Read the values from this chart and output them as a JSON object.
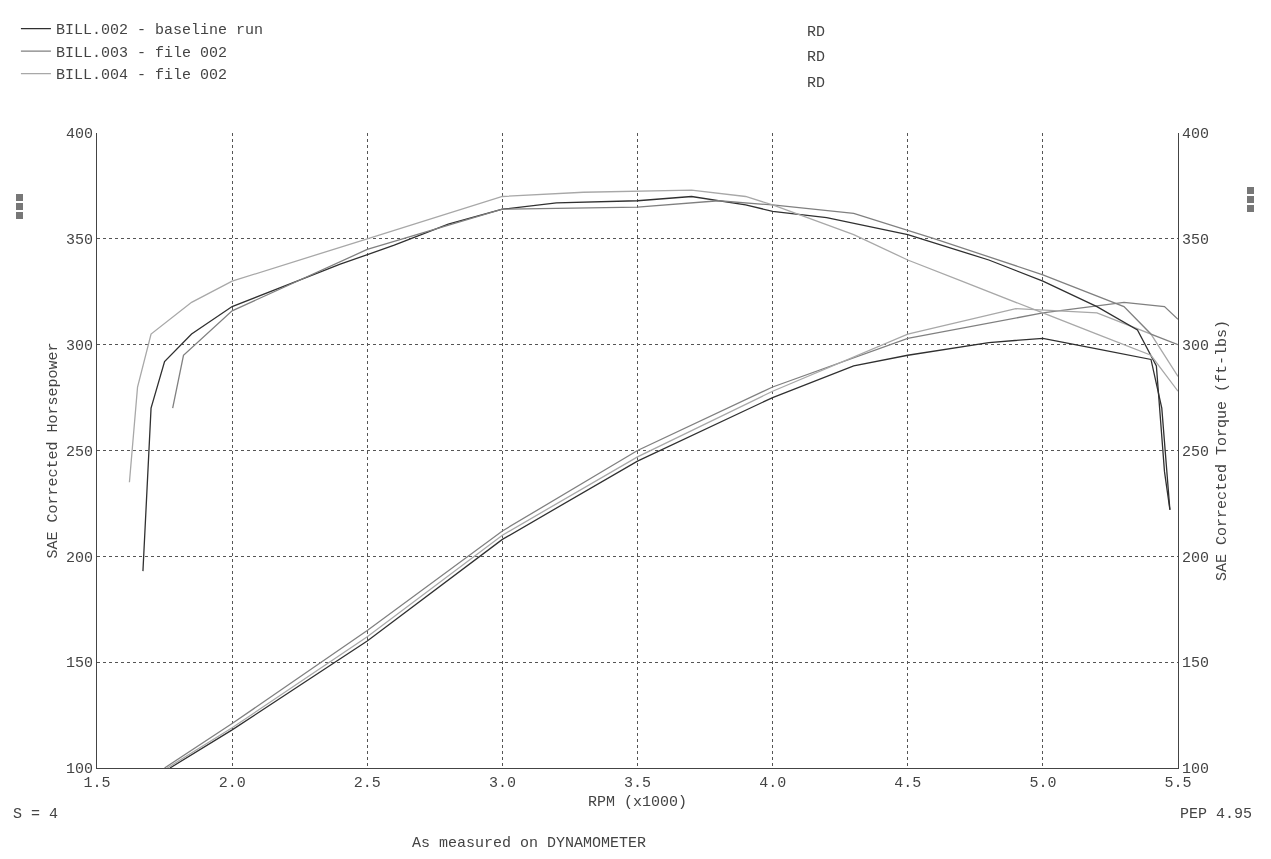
{
  "chart_data": {
    "type": "line",
    "xlabel": "RPM (x1000)",
    "ylabel": "SAE Corrected Horsepower",
    "y2label": "SAE Corrected Torque (ft-lbs)",
    "xlim": [
      1.5,
      5.5
    ],
    "xticks": [
      {
        "value": 1.5,
        "label": "1.5"
      },
      {
        "value": 2,
        "label": "2.0"
      },
      {
        "value": 2.5,
        "label": "2.5"
      },
      {
        "value": 3,
        "label": "3.0"
      },
      {
        "value": 3.5,
        "label": "3.5"
      },
      {
        "value": 4,
        "label": "4.0"
      },
      {
        "value": 4.5,
        "label": "4.5"
      },
      {
        "value": 5,
        "label": "5.0"
      },
      {
        "value": 5.5,
        "label": "5.5"
      }
    ],
    "ylim": [
      100,
      400
    ],
    "yticks": [
      100,
      150,
      200,
      250,
      300,
      350,
      400
    ],
    "y2lim": [
      100,
      400
    ],
    "y2ticks": [
      100,
      150,
      200,
      250,
      300,
      350,
      400
    ],
    "grid": true,
    "legend": "top left",
    "marker": "none",
    "line_style": "solid",
    "annotations": [
      "RD",
      "RD",
      "RD",
      "S = 4",
      "PEP 4.95",
      "As measured on DYNAMOMETER"
    ],
    "series": [
      {
        "name": "BILL.002 - baseline run",
        "color": "#303030",
        "axis": "y2",
        "x": [
          1.67,
          1.7,
          1.75,
          1.85,
          2.0,
          2.2,
          2.4,
          2.6,
          2.8,
          3.0,
          3.2,
          3.5,
          3.7,
          3.9,
          4.0,
          4.2,
          4.5,
          4.8,
          5.0,
          5.2,
          5.35,
          5.42,
          5.45,
          5.47
        ],
        "values": [
          193,
          270,
          292,
          305,
          318,
          328,
          338,
          347,
          357,
          364,
          367,
          368,
          370,
          366,
          363,
          360,
          352,
          340,
          330,
          318,
          307,
          290,
          240,
          222
        ]
      },
      {
        "name": "BILL.003 - file 002",
        "color": "#808080",
        "axis": "y2",
        "x": [
          1.78,
          1.82,
          2.0,
          2.5,
          3.0,
          3.5,
          3.8,
          4.0,
          4.3,
          4.6,
          5.0,
          5.3,
          5.4,
          5.5
        ],
        "values": [
          270,
          295,
          316,
          345,
          364,
          365,
          368,
          366,
          362,
          350,
          333,
          318,
          305,
          300
        ]
      },
      {
        "name": "BILL.004 - file 002",
        "color": "#a8a8a8",
        "axis": "y2",
        "x": [
          1.62,
          1.65,
          1.7,
          1.85,
          2.0,
          2.5,
          2.8,
          3.0,
          3.3,
          3.7,
          3.9,
          4.0,
          4.3,
          4.5,
          4.7,
          5.0,
          5.2,
          5.4,
          5.5
        ],
        "values": [
          235,
          280,
          305,
          320,
          330,
          350,
          362,
          370,
          372,
          373,
          370,
          366,
          352,
          340,
          330,
          315,
          305,
          295,
          278
        ]
      },
      {
        "color": "#303030",
        "x": [
          1.77,
          2.0,
          2.5,
          3.0,
          3.5,
          4.0,
          4.3,
          4.5,
          4.8,
          5.0,
          5.2,
          5.4,
          5.44,
          5.47
        ],
        "values": [
          100,
          118,
          160,
          208,
          245,
          275,
          290,
          295,
          301,
          303,
          298,
          293,
          270,
          222
        ]
      },
      {
        "color": "#808080",
        "x": [
          1.75,
          2.0,
          2.5,
          3.0,
          3.5,
          4.0,
          4.5,
          5.0,
          5.3,
          5.45,
          5.5
        ],
        "values": [
          100,
          121,
          165,
          212,
          250,
          280,
          303,
          315,
          320,
          318,
          312
        ]
      },
      {
        "color": "#a8a8a8",
        "x": [
          1.76,
          2.0,
          2.5,
          3.0,
          3.5,
          4.0,
          4.5,
          4.9,
          5.2,
          5.4,
          5.5
        ],
        "values": [
          100,
          119,
          162,
          210,
          247,
          278,
          305,
          317,
          315,
          305,
          285
        ]
      }
    ]
  }
}
